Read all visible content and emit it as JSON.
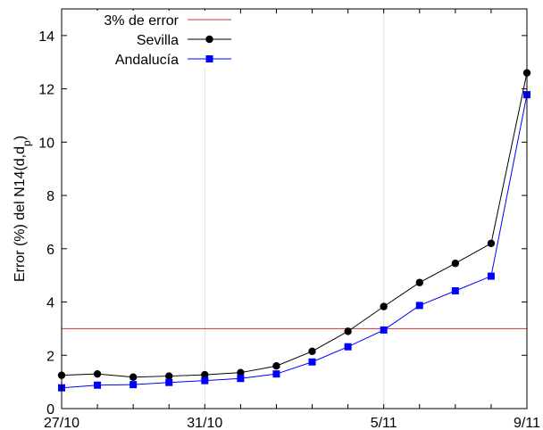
{
  "chart_data": {
    "type": "line",
    "title": "",
    "xlabel": "",
    "ylabel": "Error (%) del N14(d,dₚ)",
    "ylabel_parts": {
      "base": "Error (%) del N14(d,d",
      "sub": "p",
      "close": ")"
    },
    "xlim": [
      0,
      14
    ],
    "ylim": [
      0,
      15
    ],
    "x": [
      0,
      1,
      2,
      3,
      4,
      5,
      6,
      7,
      8,
      9,
      10,
      11,
      12,
      13
    ],
    "x_ticks": [
      {
        "x": 0,
        "label": "27/10"
      },
      {
        "x": 4,
        "label": "31/10"
      },
      {
        "x": 9,
        "label": "5/11"
      },
      {
        "x": 13,
        "label": "9/11"
      }
    ],
    "y_ticks": [
      0,
      2,
      4,
      6,
      8,
      10,
      12,
      14
    ],
    "grid": true,
    "legend_position": "top-left",
    "reference_line": {
      "name": "3% de error",
      "y": 3,
      "color": "#cc3333"
    },
    "series": [
      {
        "name": "Sevilla",
        "color": "#000000",
        "marker": "circle",
        "values": [
          1.25,
          1.3,
          1.18,
          1.22,
          1.27,
          1.35,
          1.6,
          2.15,
          2.9,
          3.83,
          4.73,
          5.45,
          6.2,
          12.6
        ]
      },
      {
        "name": "Andalucía",
        "color": "#0000ff",
        "marker": "square",
        "values": [
          0.78,
          0.88,
          0.9,
          0.98,
          1.05,
          1.13,
          1.3,
          1.75,
          2.32,
          2.95,
          3.87,
          4.42,
          4.97,
          11.78
        ]
      }
    ]
  }
}
